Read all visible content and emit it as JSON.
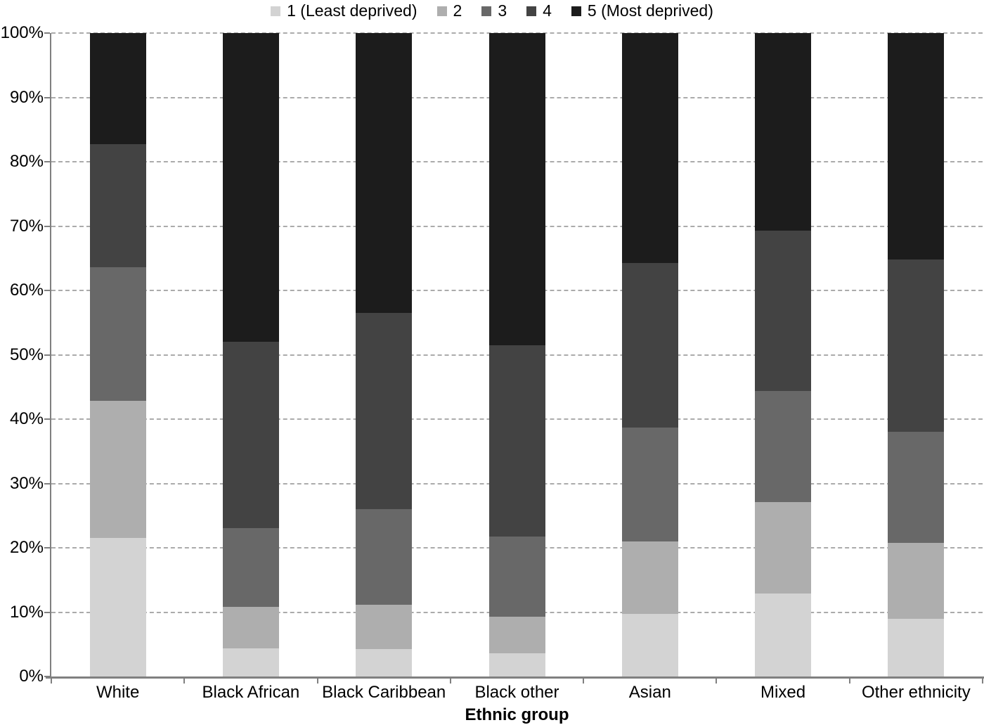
{
  "chart_data": {
    "type": "bar",
    "subtype": "100% stacked vertical bars",
    "title": "",
    "xlabel": "Ethnic group",
    "ylabel": "",
    "ylim": [
      0,
      100
    ],
    "y_ticks": [
      "0%",
      "10%",
      "20%",
      "30%",
      "40%",
      "50%",
      "60%",
      "70%",
      "80%",
      "90%",
      "100%"
    ],
    "grid": "horizontal dashed lines at every 10%",
    "legend_position": "top-center",
    "grid_color": "#ababab",
    "axis_color": "#808080",
    "text_color": "#000000",
    "categories": [
      "White",
      "Black African",
      "Black Caribbean",
      "Black other",
      "Asian",
      "Mixed",
      "Other ethnicity"
    ],
    "series": [
      {
        "name": "1 (Least deprived)",
        "color": "#d3d3d3",
        "values": [
          21.5,
          4.4,
          4.3,
          3.6,
          9.7,
          12.9,
          9.0
        ]
      },
      {
        "name": "2",
        "color": "#aeaeae",
        "values": [
          21.3,
          6.4,
          6.9,
          5.7,
          11.3,
          14.2,
          11.8
        ]
      },
      {
        "name": "3",
        "color": "#686868",
        "values": [
          20.8,
          12.3,
          14.8,
          12.4,
          17.7,
          17.3,
          17.2
        ]
      },
      {
        "name": "4",
        "color": "#434343",
        "values": [
          19.1,
          28.9,
          30.5,
          29.8,
          25.6,
          24.9,
          26.8
        ]
      },
      {
        "name": "5 (Most deprived)",
        "color": "#1c1c1c",
        "values": [
          17.3,
          48.0,
          43.5,
          48.5,
          35.7,
          30.7,
          35.2
        ]
      }
    ]
  }
}
